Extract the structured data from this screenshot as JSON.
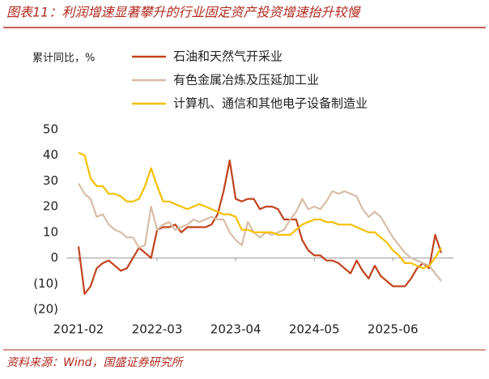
{
  "title": "图表11：利润增速显著攀升的行业固定资产投资增速抬升较慢",
  "source": "资料来源：Wind，国盛证券研究所",
  "chart_data": {
    "type": "line",
    "y_label": "累计同比，%",
    "categories": [
      "2021-02",
      null,
      null,
      null,
      null,
      null,
      null,
      null,
      null,
      null,
      null,
      null,
      null,
      "2022-03",
      null,
      null,
      null,
      null,
      null,
      null,
      null,
      null,
      null,
      null,
      null,
      null,
      "2023-04",
      null,
      null,
      null,
      null,
      null,
      null,
      null,
      null,
      null,
      null,
      null,
      null,
      "2024-05",
      null,
      null,
      null,
      null,
      null,
      null,
      null,
      null,
      null,
      null,
      null,
      null,
      "2025-06",
      null,
      null,
      null,
      null,
      null,
      null,
      null,
      null
    ],
    "ylim": [
      -20,
      50
    ],
    "yticks": [
      {
        "value": -20,
        "label": "(20)"
      },
      {
        "value": -10,
        "label": "(10)"
      },
      0,
      10,
      20,
      30,
      40,
      50
    ],
    "legend": "top-right",
    "series": [
      {
        "name": "石油和天然气开采业",
        "color": "#c1431c",
        "values": [
          4.5,
          -14,
          -11,
          -4,
          -2,
          -1,
          -3,
          -5,
          -4,
          0,
          4,
          2,
          0,
          11,
          12,
          12,
          13,
          10,
          12,
          12,
          12,
          12,
          13,
          17,
          26,
          38,
          23,
          22,
          23,
          23,
          19,
          20,
          20,
          19,
          15,
          15,
          15,
          7,
          3,
          1,
          1,
          -1,
          -1,
          -2,
          -4,
          -6,
          -1,
          -5,
          -8,
          -3,
          -7,
          -9,
          -11,
          -11,
          -11,
          -8,
          -4,
          -2,
          -4,
          9,
          2
        ]
      },
      {
        "name": "有色金属冶炼及压延加工业",
        "color": "#d6bea6",
        "values": [
          29,
          25,
          23,
          16,
          17,
          13,
          11,
          10,
          8,
          8,
          4,
          5,
          20,
          11,
          13,
          14,
          11,
          12,
          13,
          15,
          14,
          15,
          16,
          15,
          15,
          10,
          7,
          5,
          14,
          10,
          8,
          10,
          9,
          10,
          11,
          15,
          18,
          23,
          19,
          20,
          19,
          22,
          26,
          25,
          26,
          25,
          24,
          19,
          16,
          18,
          16,
          12,
          8,
          5,
          2,
          0,
          -1,
          -2,
          -3,
          -6,
          -9
        ]
      },
      {
        "name": "计算机、通信和其他电子设备制造业",
        "color": "#f5c000",
        "values": [
          41,
          40,
          31,
          28,
          28,
          25,
          25,
          24,
          22,
          22,
          23,
          28,
          35,
          28,
          22,
          22,
          21,
          20,
          19,
          20,
          21,
          20,
          19,
          18,
          17,
          17,
          16,
          11,
          11,
          10,
          10,
          10,
          10,
          9,
          9,
          9,
          11,
          13,
          14,
          15,
          15,
          14,
          14,
          13,
          13,
          13,
          12,
          11,
          10,
          10,
          8,
          6,
          3,
          1,
          -2,
          -2,
          -3,
          -4,
          -3,
          0,
          4
        ]
      }
    ]
  }
}
